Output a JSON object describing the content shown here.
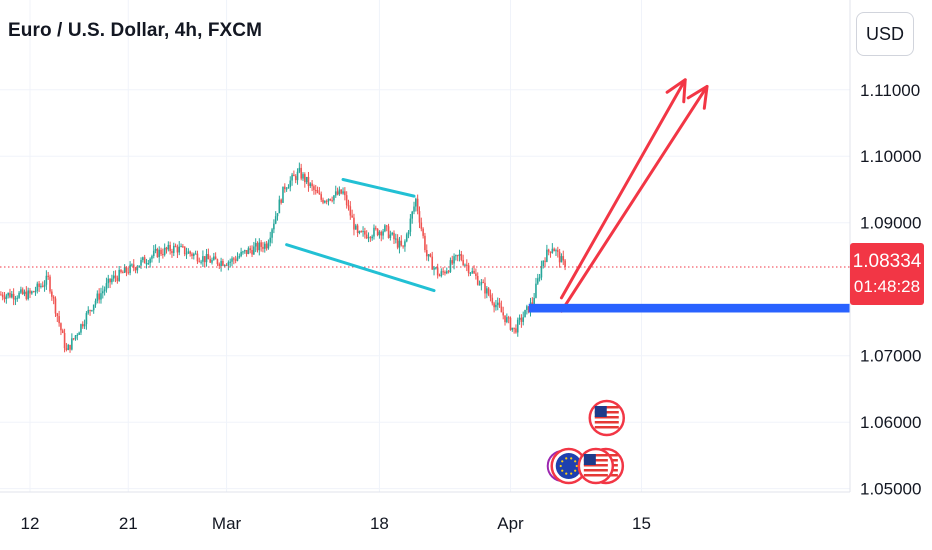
{
  "header": {
    "title": "Euro / U.S. Dollar, 4h, FXCM"
  },
  "toolbar": {
    "currency_label": "USD"
  },
  "last_price": {
    "value": "1.08334",
    "countdown": "01:48:28"
  },
  "colors": {
    "bull": "#26a69a",
    "bear": "#ef5350",
    "price_line": "#f23645",
    "channel": "#22c0d4",
    "target_arrow": "#f23645",
    "support_zone": "#2962ff",
    "axis_text": "#131722",
    "grid": "#f0f3fa"
  },
  "chart_data": {
    "type": "candlestick",
    "title": "Euro / U.S. Dollar, 4h, FXCM",
    "xlabel": "",
    "ylabel": "",
    "ylim": [
      1.0495,
      1.1235
    ],
    "y_ticks": [
      "1.11000",
      "1.10000",
      "1.09000",
      "1.07000",
      "1.06000",
      "1.05000"
    ],
    "x_ticks": [
      {
        "label": "12",
        "bar": 0
      },
      {
        "label": "21",
        "bar": 54
      },
      {
        "label": "Mar",
        "bar": 108
      },
      {
        "label": "18",
        "bar": 192
      },
      {
        "label": "Apr",
        "bar": 264
      },
      {
        "label": "15",
        "bar": 336
      }
    ],
    "last_price": 1.08334,
    "grid": true,
    "key_closes": [
      {
        "bar": 0,
        "price": 1.0792
      },
      {
        "bar": 10,
        "price": 1.0815
      },
      {
        "bar": 20,
        "price": 1.0706
      },
      {
        "bar": 35,
        "price": 1.078
      },
      {
        "bar": 45,
        "price": 1.0815
      },
      {
        "bar": 58,
        "price": 1.0835
      },
      {
        "bar": 70,
        "price": 1.0855
      },
      {
        "bar": 80,
        "price": 1.0862
      },
      {
        "bar": 100,
        "price": 1.0842
      },
      {
        "bar": 110,
        "price": 1.0842
      },
      {
        "bar": 120,
        "price": 1.0858
      },
      {
        "bar": 130,
        "price": 1.0868
      },
      {
        "bar": 140,
        "price": 1.0955
      },
      {
        "bar": 148,
        "price": 1.0975
      },
      {
        "bar": 160,
        "price": 1.0935
      },
      {
        "bar": 172,
        "price": 1.0945
      },
      {
        "bar": 180,
        "price": 1.088
      },
      {
        "bar": 195,
        "price": 1.089
      },
      {
        "bar": 205,
        "price": 1.086
      },
      {
        "bar": 212,
        "price": 1.0935
      },
      {
        "bar": 218,
        "price": 1.085
      },
      {
        "bar": 225,
        "price": 1.082
      },
      {
        "bar": 236,
        "price": 1.085
      },
      {
        "bar": 250,
        "price": 1.08
      },
      {
        "bar": 266,
        "price": 1.0738
      },
      {
        "bar": 276,
        "price": 1.078
      },
      {
        "bar": 282,
        "price": 1.0845
      },
      {
        "bar": 287,
        "price": 1.0865
      },
      {
        "bar": 294,
        "price": 1.0833
      }
    ],
    "drawings": {
      "channel_upper": [
        {
          "bar": 172,
          "price": 1.0965
        },
        {
          "bar": 211,
          "price": 1.094
        }
      ],
      "channel_lower": [
        {
          "bar": 141,
          "price": 1.0867
        },
        {
          "bar": 222,
          "price": 1.0798
        }
      ],
      "target_arrow_1": [
        {
          "bar": 292,
          "price": 1.0787
        },
        {
          "bar": 360,
          "price": 1.1115
        }
      ],
      "target_arrow_2": [
        {
          "bar": 292,
          "price": 1.0767
        },
        {
          "bar": 372,
          "price": 1.1105
        }
      ],
      "support_zone": {
        "bar_start": 274,
        "price_low": 1.0765,
        "price_high": 1.0778
      }
    },
    "events": [
      {
        "bar": 318,
        "icon": "us-flag"
      },
      {
        "bar": 296,
        "icon": "eu-flag"
      },
      {
        "bar": 312,
        "icon": "us-flag"
      }
    ]
  }
}
